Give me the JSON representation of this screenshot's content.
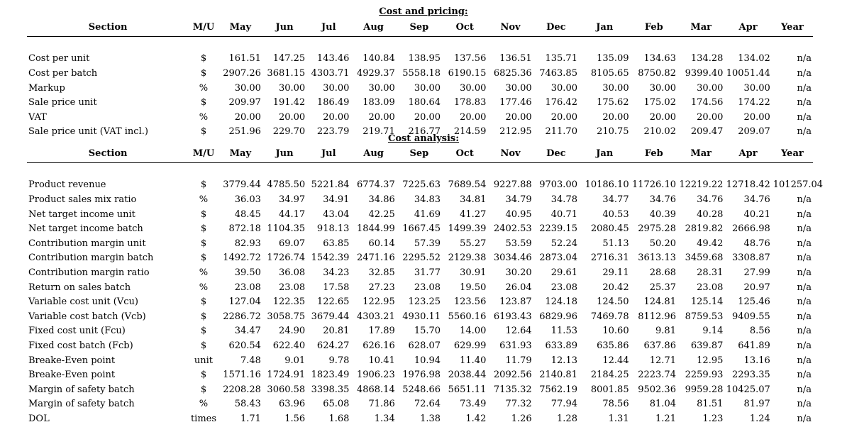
{
  "pricing": {
    "caption": "Cost and pricing:",
    "headers": [
      "Section",
      "M/U",
      "May",
      "Jun",
      "Jul",
      "Aug",
      "Sep",
      "Oct",
      "Nov",
      "Dec",
      "Jan",
      "Feb",
      "Mar",
      "Apr",
      "Year"
    ],
    "rows": [
      [
        "Cost per unit",
        "$",
        "161.51",
        "147.25",
        "143.46",
        "140.84",
        "138.95",
        "137.56",
        "136.51",
        "135.71",
        "135.09",
        "134.63",
        "134.28",
        "134.02",
        "n/a"
      ],
      [
        "Cost per batch",
        "$",
        "2907.26",
        "3681.15",
        "4303.71",
        "4929.37",
        "5558.18",
        "6190.15",
        "6825.36",
        "7463.85",
        "8105.65",
        "8750.82",
        "9399.40",
        "10051.44",
        "n/a"
      ],
      [
        "Markup",
        "%",
        "30.00",
        "30.00",
        "30.00",
        "30.00",
        "30.00",
        "30.00",
        "30.00",
        "30.00",
        "30.00",
        "30.00",
        "30.00",
        "30.00",
        "n/a"
      ],
      [
        "Sale price unit",
        "$",
        "209.97",
        "191.42",
        "186.49",
        "183.09",
        "180.64",
        "178.83",
        "177.46",
        "176.42",
        "175.62",
        "175.02",
        "174.56",
        "174.22",
        "n/a"
      ],
      [
        "VAT",
        "%",
        "20.00",
        "20.00",
        "20.00",
        "20.00",
        "20.00",
        "20.00",
        "20.00",
        "20.00",
        "20.00",
        "20.00",
        "20.00",
        "20.00",
        "n/a"
      ],
      [
        "Sale price unit (VAT incl.)",
        "$",
        "251.96",
        "229.70",
        "223.79",
        "219.71",
        "216.77",
        "214.59",
        "212.95",
        "211.70",
        "210.75",
        "210.02",
        "209.47",
        "209.07",
        "n/a"
      ]
    ]
  },
  "analysis": {
    "caption": "Cost analysis:",
    "headers": [
      "Section",
      "M/U",
      "May",
      "Jun",
      "Jul",
      "Aug",
      "Sep",
      "Oct",
      "Nov",
      "Dec",
      "Jan",
      "Feb",
      "Mar",
      "Apr",
      "Year"
    ],
    "rows": [
      [
        "Product revenue",
        "$",
        "3779.44",
        "4785.50",
        "5221.84",
        "6774.37",
        "7225.63",
        "7689.54",
        "9227.88",
        "9703.00",
        "10186.10",
        "11726.10",
        "12219.22",
        "12718.42",
        "101257.04"
      ],
      [
        "Product sales mix ratio",
        "%",
        "36.03",
        "34.97",
        "34.91",
        "34.86",
        "34.83",
        "34.81",
        "34.79",
        "34.78",
        "34.77",
        "34.76",
        "34.76",
        "34.76",
        "n/a"
      ],
      [
        "Net target income unit",
        "$",
        "48.45",
        "44.17",
        "43.04",
        "42.25",
        "41.69",
        "41.27",
        "40.95",
        "40.71",
        "40.53",
        "40.39",
        "40.28",
        "40.21",
        "n/a"
      ],
      [
        "Net target income batch",
        "$",
        "872.18",
        "1104.35",
        "918.13",
        "1844.99",
        "1667.45",
        "1499.39",
        "2402.53",
        "2239.15",
        "2080.45",
        "2975.28",
        "2819.82",
        "2666.98",
        "n/a"
      ],
      [
        "Contribution margin unit",
        "$",
        "82.93",
        "69.07",
        "63.85",
        "60.14",
        "57.39",
        "55.27",
        "53.59",
        "52.24",
        "51.13",
        "50.20",
        "49.42",
        "48.76",
        "n/a"
      ],
      [
        "Contribution margin batch",
        "$",
        "1492.72",
        "1726.74",
        "1542.39",
        "2471.16",
        "2295.52",
        "2129.38",
        "3034.46",
        "2873.04",
        "2716.31",
        "3613.13",
        "3459.68",
        "3308.87",
        "n/a"
      ],
      [
        "Contribution margin ratio",
        "%",
        "39.50",
        "36.08",
        "34.23",
        "32.85",
        "31.77",
        "30.91",
        "30.20",
        "29.61",
        "29.11",
        "28.68",
        "28.31",
        "27.99",
        "n/a"
      ],
      [
        "Return on sales batch",
        "%",
        "23.08",
        "23.08",
        "17.58",
        "27.23",
        "23.08",
        "19.50",
        "26.04",
        "23.08",
        "20.42",
        "25.37",
        "23.08",
        "20.97",
        "n/a"
      ],
      [
        "Variable cost unit (Vcu)",
        "$",
        "127.04",
        "122.35",
        "122.65",
        "122.95",
        "123.25",
        "123.56",
        "123.87",
        "124.18",
        "124.50",
        "124.81",
        "125.14",
        "125.46",
        "n/a"
      ],
      [
        "Variable cost batch (Vcb)",
        "$",
        "2286.72",
        "3058.75",
        "3679.44",
        "4303.21",
        "4930.11",
        "5560.16",
        "6193.43",
        "6829.96",
        "7469.78",
        "8112.96",
        "8759.53",
        "9409.55",
        "n/a"
      ],
      [
        "Fixed cost unit (Fcu)",
        "$",
        "34.47",
        "24.90",
        "20.81",
        "17.89",
        "15.70",
        "14.00",
        "12.64",
        "11.53",
        "10.60",
        "9.81",
        "9.14",
        "8.56",
        "n/a"
      ],
      [
        "Fixed cost batch (Fcb)",
        "$",
        "620.54",
        "622.40",
        "624.27",
        "626.16",
        "628.07",
        "629.99",
        "631.93",
        "633.89",
        "635.86",
        "637.86",
        "639.87",
        "641.89",
        "n/a"
      ],
      [
        "Breake-Even point",
        "unit",
        "7.48",
        "9.01",
        "9.78",
        "10.41",
        "10.94",
        "11.40",
        "11.79",
        "12.13",
        "12.44",
        "12.71",
        "12.95",
        "13.16",
        "n/a"
      ],
      [
        "Breake-Even point",
        "$",
        "1571.16",
        "1724.91",
        "1823.49",
        "1906.23",
        "1976.98",
        "2038.44",
        "2092.56",
        "2140.81",
        "2184.25",
        "2223.74",
        "2259.93",
        "2293.35",
        "n/a"
      ],
      [
        "Margin of safety batch",
        "$",
        "2208.28",
        "3060.58",
        "3398.35",
        "4868.14",
        "5248.66",
        "5651.11",
        "7135.32",
        "7562.19",
        "8001.85",
        "9502.36",
        "9959.28",
        "10425.07",
        "n/a"
      ],
      [
        "Margin of safety batch",
        "%",
        "58.43",
        "63.96",
        "65.08",
        "71.86",
        "72.64",
        "73.49",
        "77.32",
        "77.94",
        "78.56",
        "81.04",
        "81.51",
        "81.97",
        "n/a"
      ],
      [
        "DOL",
        "times",
        "1.71",
        "1.56",
        "1.68",
        "1.34",
        "1.38",
        "1.42",
        "1.26",
        "1.28",
        "1.31",
        "1.21",
        "1.23",
        "1.24",
        "n/a"
      ]
    ]
  }
}
